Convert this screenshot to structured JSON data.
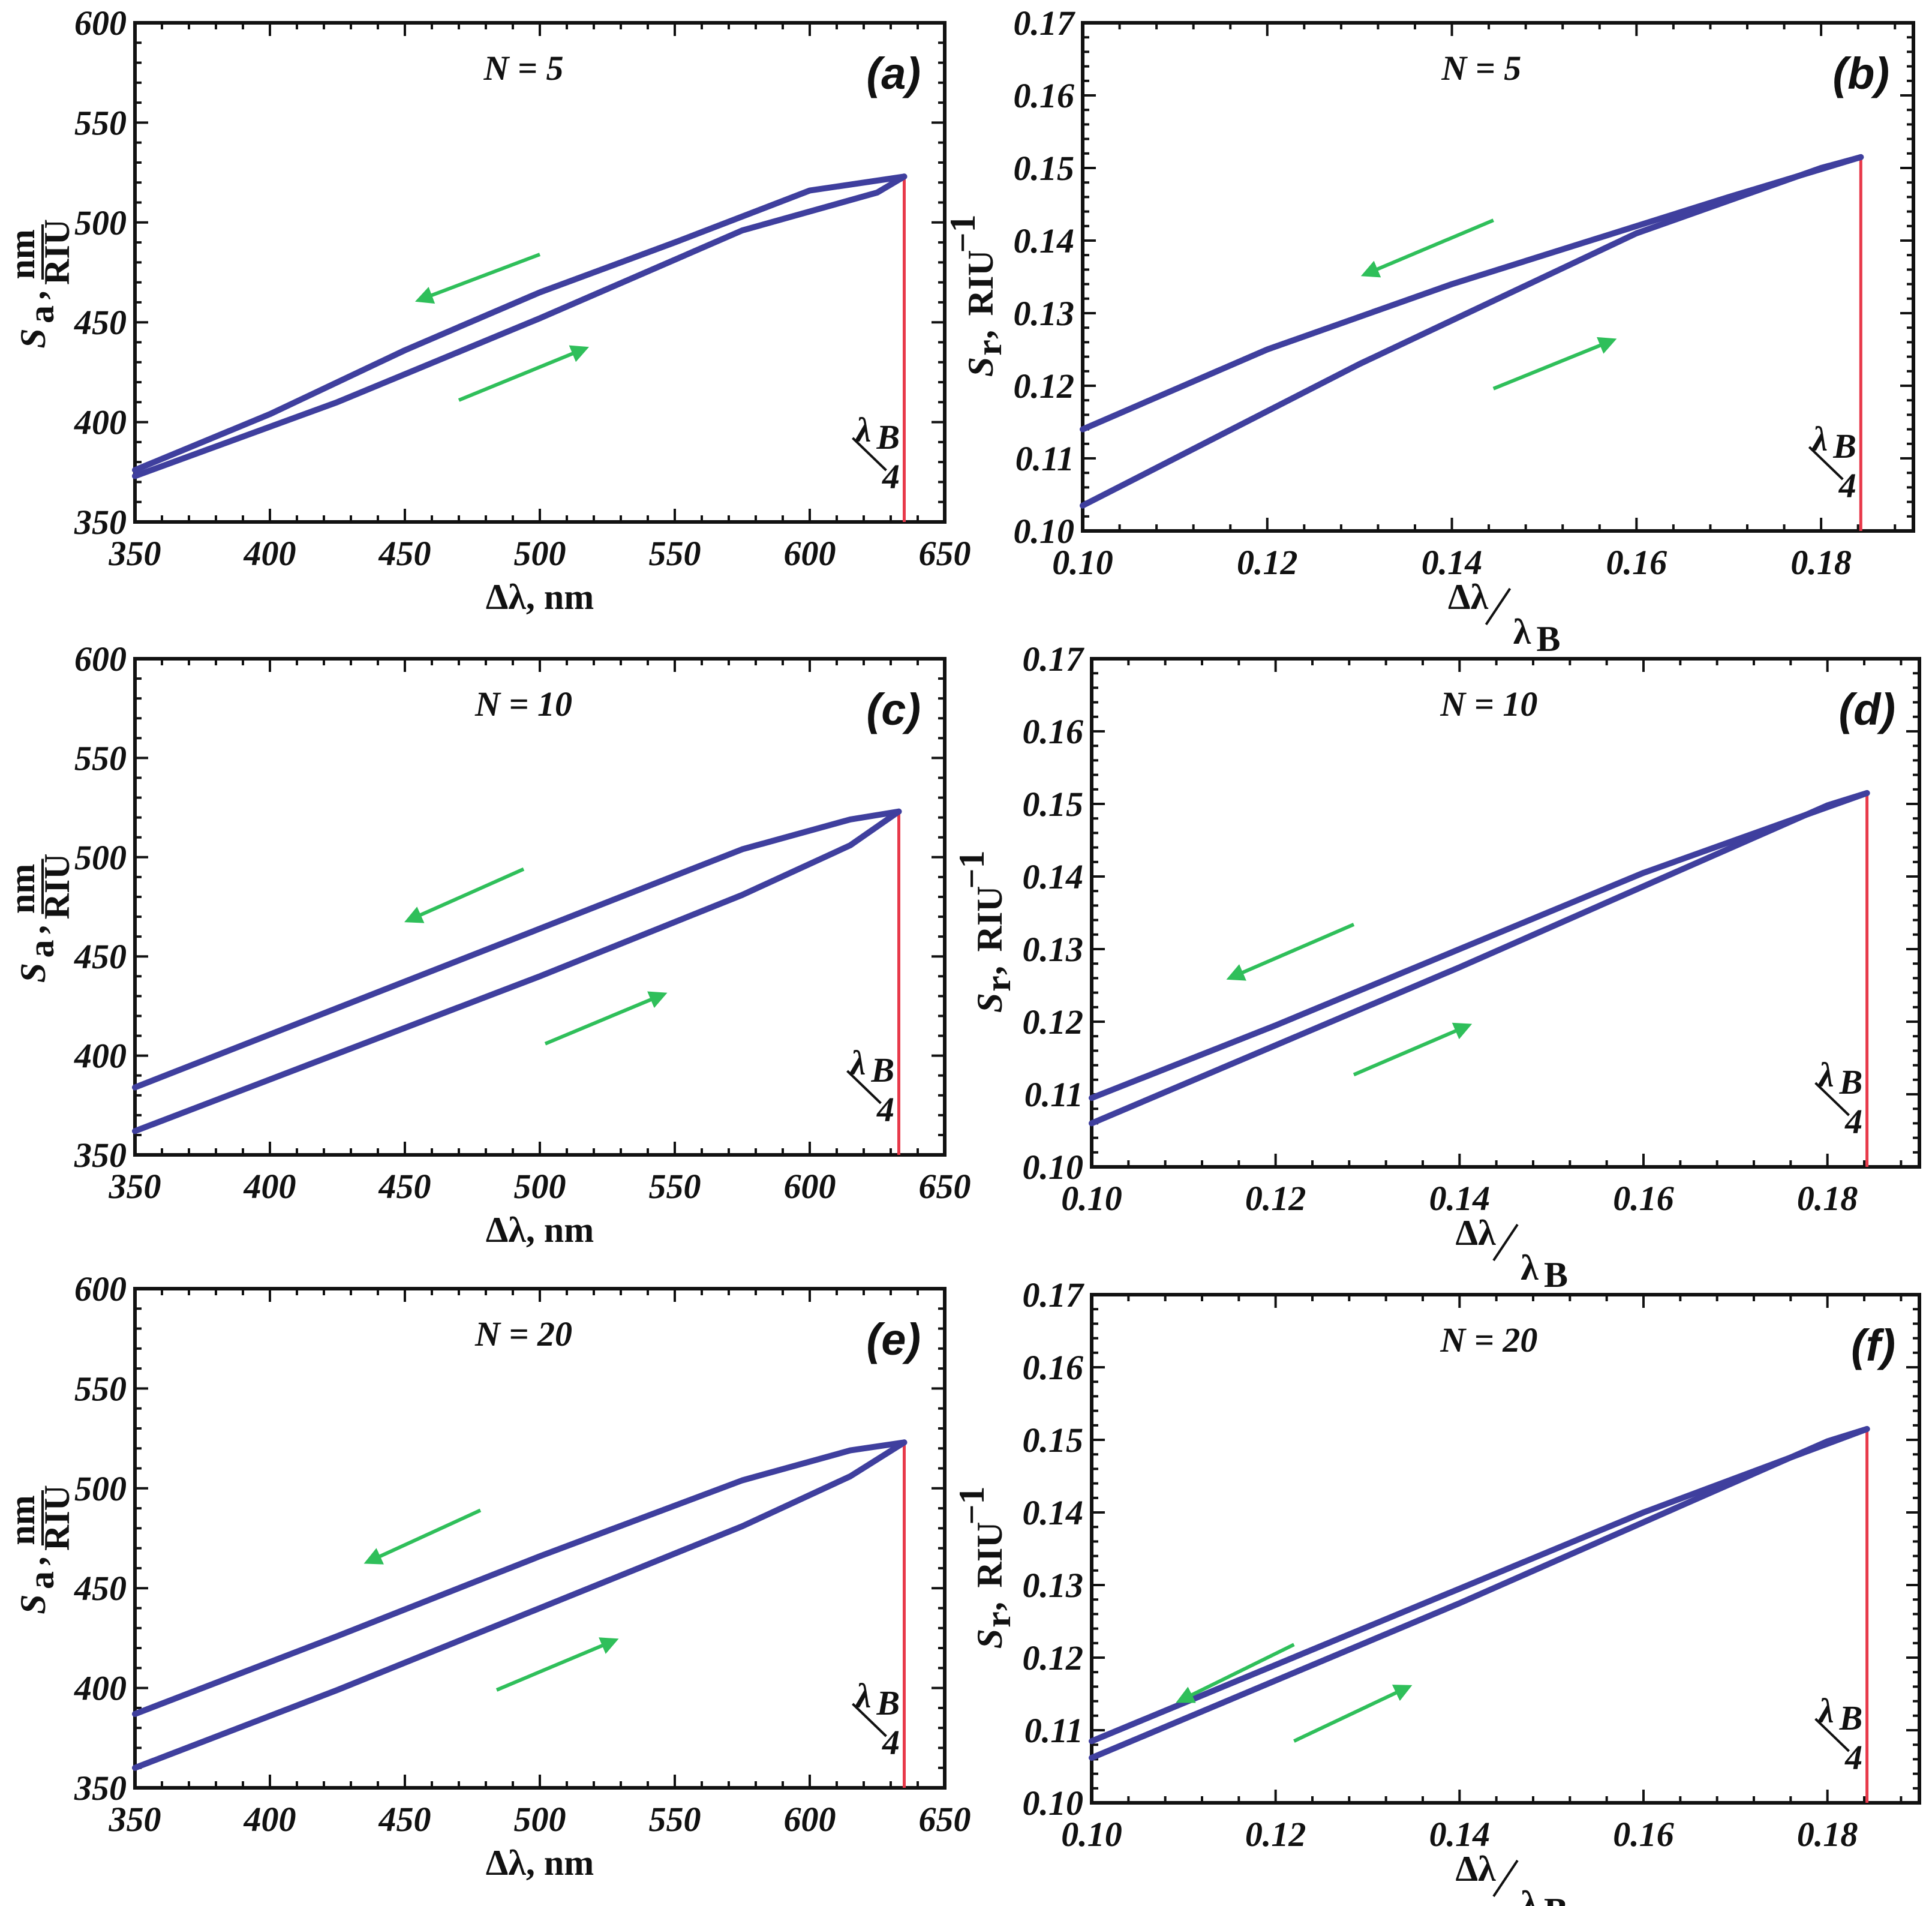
{
  "figure": {
    "curve_color": "#3f3f9e",
    "marker_color": "#e8394a",
    "arrow_color": "#2fbf5a"
  },
  "chart_data": [
    {
      "id": "a",
      "type": "line",
      "panel_label": "(a)",
      "letter": "a",
      "title": "N = 5",
      "xlabel": "Δλ, nm",
      "ylabel_symbol": "S",
      "ylabel_sub": "a",
      "ylabel_unit_num": "nm",
      "ylabel_unit_den": "RIU",
      "xlim": [
        350,
        650
      ],
      "ylim": [
        350,
        600
      ],
      "xticks": [
        "350",
        "400",
        "450",
        "500",
        "550",
        "600",
        "650"
      ],
      "yticks": [
        "350",
        "400",
        "450",
        "500",
        "550",
        "600"
      ],
      "marker_x": 635,
      "marker_label_top": "λ",
      "marker_label_sub": "B",
      "marker_label_bottom": "4",
      "series": [
        {
          "name": "increasing",
          "x": [
            350,
            425,
            500,
            575,
            625,
            635
          ],
          "y": [
            373,
            410,
            452,
            496,
            515,
            523
          ]
        },
        {
          "name": "decreasing",
          "x": [
            635,
            600,
            550,
            500,
            450,
            400,
            350
          ],
          "y": [
            523,
            516,
            490,
            465,
            436,
            404,
            376
          ]
        }
      ],
      "arrows": [
        {
          "from": [
            500,
            484
          ],
          "to": [
            455,
            461
          ]
        },
        {
          "from": [
            470,
            411
          ],
          "to": [
            517,
            437
          ]
        }
      ]
    },
    {
      "id": "b",
      "type": "line",
      "panel_label": "(b)",
      "letter": "b",
      "title": "N = 5",
      "xlabel_num": "Δλ",
      "xlabel_den": "λ",
      "xlabel_den_sub": "B",
      "ylabel_symbol": "S",
      "ylabel_sub": "r",
      "ylabel_unit": "RIU",
      "ylabel_sup": "−1",
      "xlim": [
        0.1,
        0.19
      ],
      "ylim": [
        0.1,
        0.17
      ],
      "xticks": [
        "0.10",
        "0.12",
        "0.14",
        "0.16",
        "0.18"
      ],
      "yticks": [
        "0.10",
        "0.11",
        "0.12",
        "0.13",
        "0.14",
        "0.15",
        "0.16",
        "0.17"
      ],
      "marker_x": 0.1843,
      "marker_label_top": "λ",
      "marker_label_sub": "B",
      "marker_label_bottom": "4",
      "series": [
        {
          "name": "increasing",
          "x": [
            0.1,
            0.13,
            0.16,
            0.18,
            0.1843
          ],
          "y": [
            0.1035,
            0.123,
            0.141,
            0.15,
            0.1515
          ]
        },
        {
          "name": "decreasing",
          "x": [
            0.1843,
            0.17,
            0.14,
            0.12,
            0.1
          ],
          "y": [
            0.1515,
            0.146,
            0.134,
            0.125,
            0.114
          ]
        }
      ],
      "arrows": [
        {
          "from": [
            0.1445,
            0.1428
          ],
          "to": [
            0.1305,
            0.1353
          ]
        },
        {
          "from": [
            0.1445,
            0.1196
          ],
          "to": [
            0.1575,
            0.1263
          ]
        }
      ]
    },
    {
      "id": "c",
      "type": "line",
      "panel_label": "(c)",
      "letter": "c",
      "title": "N = 10",
      "xlabel": "Δλ, nm",
      "ylabel_symbol": "S",
      "ylabel_sub": "a",
      "ylabel_unit_num": "nm",
      "ylabel_unit_den": "RIU",
      "xlim": [
        350,
        650
      ],
      "ylim": [
        350,
        600
      ],
      "xticks": [
        "350",
        "400",
        "450",
        "500",
        "550",
        "600",
        "650"
      ],
      "yticks": [
        "350",
        "400",
        "450",
        "500",
        "550",
        "600"
      ],
      "marker_x": 633,
      "marker_label_top": "λ",
      "marker_label_sub": "B",
      "marker_label_bottom": "4",
      "series": [
        {
          "name": "increasing",
          "x": [
            350,
            425,
            500,
            575,
            615,
            633
          ],
          "y": [
            362,
            401,
            440,
            481,
            506,
            523
          ]
        },
        {
          "name": "decreasing",
          "x": [
            633,
            615,
            575,
            500,
            425,
            350
          ],
          "y": [
            523,
            519,
            504,
            464,
            424,
            384
          ]
        }
      ],
      "arrows": [
        {
          "from": [
            494,
            494
          ],
          "to": [
            451,
            468
          ]
        },
        {
          "from": [
            502,
            406
          ],
          "to": [
            546,
            431
          ]
        }
      ]
    },
    {
      "id": "d",
      "type": "line",
      "panel_label": "(d)",
      "letter": "d",
      "title": "N = 10",
      "xlabel_num": "Δλ",
      "xlabel_den": "λ",
      "xlabel_den_sub": "B",
      "ylabel_symbol": "S",
      "ylabel_sub": "r",
      "ylabel_unit": "RIU",
      "ylabel_sup": "−1",
      "xlim": [
        0.1,
        0.19
      ],
      "ylim": [
        0.1,
        0.17
      ],
      "xticks": [
        "0.10",
        "0.12",
        "0.14",
        "0.16",
        "0.18"
      ],
      "yticks": [
        "0.10",
        "0.11",
        "0.12",
        "0.13",
        "0.14",
        "0.15",
        "0.16",
        "0.17"
      ],
      "marker_x": 0.1843,
      "marker_label_top": "λ",
      "marker_label_sub": "B",
      "marker_label_bottom": "4",
      "series": [
        {
          "name": "increasing",
          "x": [
            0.1,
            0.14,
            0.18,
            0.1843
          ],
          "y": [
            0.106,
            0.1275,
            0.1498,
            0.1515
          ]
        },
        {
          "name": "decreasing",
          "x": [
            0.1843,
            0.16,
            0.14,
            0.12,
            0.1
          ],
          "y": [
            0.1515,
            0.1405,
            0.13,
            0.1195,
            0.1095
          ]
        }
      ],
      "arrows": [
        {
          "from": [
            0.1285,
            0.1334
          ],
          "to": [
            0.115,
            0.126
          ]
        },
        {
          "from": [
            0.1285,
            0.1127
          ],
          "to": [
            0.141,
            0.1195
          ]
        }
      ]
    },
    {
      "id": "e",
      "type": "line",
      "panel_label": "(e)",
      "letter": "e",
      "title": "N = 20",
      "xlabel": "Δλ, nm",
      "ylabel_symbol": "S",
      "ylabel_sub": "a",
      "ylabel_unit_num": "nm",
      "ylabel_unit_den": "RIU",
      "xlim": [
        350,
        650
      ],
      "ylim": [
        350,
        600
      ],
      "xticks": [
        "350",
        "400",
        "450",
        "500",
        "550",
        "600",
        "650"
      ],
      "yticks": [
        "350",
        "400",
        "450",
        "500",
        "550",
        "600"
      ],
      "marker_x": 635,
      "marker_label_top": "λ",
      "marker_label_sub": "B",
      "marker_label_bottom": "4",
      "series": [
        {
          "name": "increasing",
          "x": [
            350,
            425,
            500,
            575,
            615,
            635
          ],
          "y": [
            360,
            399,
            440,
            481,
            506,
            523
          ]
        },
        {
          "name": "decreasing",
          "x": [
            635,
            615,
            575,
            500,
            425,
            350
          ],
          "y": [
            523,
            519,
            504,
            466,
            426,
            387
          ]
        }
      ],
      "arrows": [
        {
          "from": [
            478,
            489
          ],
          "to": [
            436,
            463
          ]
        },
        {
          "from": [
            484,
            399
          ],
          "to": [
            528,
            424
          ]
        }
      ]
    },
    {
      "id": "f",
      "type": "line",
      "panel_label": "(f)",
      "letter": "f",
      "title": "N = 20",
      "xlabel_num": "Δλ",
      "xlabel_den": "λ",
      "xlabel_den_sub": "B",
      "ylabel_symbol": "S",
      "ylabel_sub": "r",
      "ylabel_unit": "RIU",
      "ylabel_sup": "−1",
      "xlim": [
        0.1,
        0.19
      ],
      "ylim": [
        0.1,
        0.17
      ],
      "xticks": [
        "0.10",
        "0.12",
        "0.14",
        "0.16",
        "0.18"
      ],
      "yticks": [
        "0.10",
        "0.11",
        "0.12",
        "0.13",
        "0.14",
        "0.15",
        "0.16",
        "0.17"
      ],
      "marker_x": 0.1843,
      "marker_label_top": "λ",
      "marker_label_sub": "B",
      "marker_label_bottom": "4",
      "series": [
        {
          "name": "increasing",
          "x": [
            0.1,
            0.14,
            0.18,
            0.1843
          ],
          "y": [
            0.1062,
            0.1275,
            0.1498,
            0.1515
          ]
        },
        {
          "name": "decreasing",
          "x": [
            0.1843,
            0.16,
            0.14,
            0.12,
            0.1
          ],
          "y": [
            0.1515,
            0.14,
            0.1295,
            0.119,
            0.1085
          ]
        }
      ],
      "arrows": [
        {
          "from": [
            0.122,
            0.1218
          ],
          "to": [
            0.1095,
            0.114
          ]
        },
        {
          "from": [
            0.122,
            0.1085
          ],
          "to": [
            0.1345,
            0.116
          ]
        }
      ]
    }
  ]
}
